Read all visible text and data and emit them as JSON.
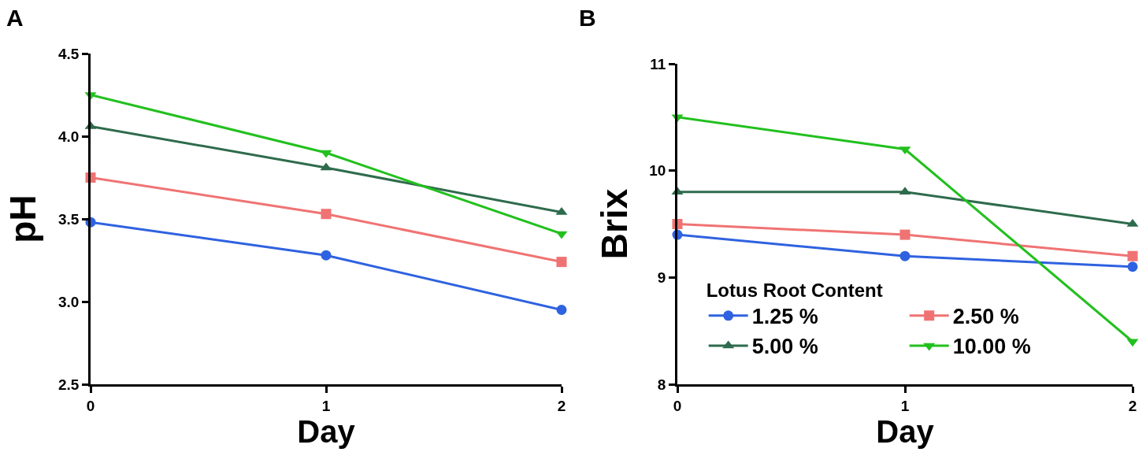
{
  "chart_data": [
    {
      "type": "line",
      "title": "A",
      "xlabel": "Day",
      "ylabel": "pH",
      "x": [
        0,
        1,
        2
      ],
      "xlim": [
        0,
        2
      ],
      "xticks": [
        0,
        1,
        2
      ],
      "ylim": [
        2.5,
        4.5
      ],
      "yticks": [
        {
          "value": 2.5,
          "label": "2.5"
        },
        {
          "value": 3.0,
          "label": "3.0"
        },
        {
          "value": 3.5,
          "label": "3.5"
        },
        {
          "value": 4.0,
          "label": "4.0"
        },
        {
          "value": 4.5,
          "label": "4.5"
        }
      ],
      "grid": false,
      "legend": false,
      "series": [
        {
          "color": "#2f62e0",
          "marker": "circle",
          "values": [
            3.48,
            3.28,
            2.95
          ]
        },
        {
          "color": "#f07373",
          "marker": "square",
          "values": [
            3.75,
            3.53,
            3.24
          ]
        },
        {
          "color": "#2e6b4c",
          "marker": "triangle",
          "values": [
            4.06,
            3.81,
            3.54
          ]
        },
        {
          "color": "#22c01e",
          "marker": "triangle-down",
          "values": [
            4.25,
            3.9,
            3.41
          ]
        }
      ]
    },
    {
      "type": "line",
      "title": "B",
      "xlabel": "Day",
      "ylabel": "Brix",
      "legend_title": "Lotus Root Content",
      "x": [
        0,
        1,
        2
      ],
      "xlim": [
        0,
        2
      ],
      "xticks": [
        0,
        1,
        2
      ],
      "ylim": [
        8,
        11
      ],
      "yticks": [
        8,
        9,
        10,
        11
      ],
      "grid": false,
      "legend": "bottom",
      "series": [
        {
          "name": "1.25 %",
          "color": "#2f62e0",
          "marker": "circle",
          "values": [
            9.4,
            9.2,
            9.1
          ]
        },
        {
          "name": "2.50 %",
          "color": "#f07373",
          "marker": "square",
          "values": [
            9.5,
            9.4,
            9.2
          ]
        },
        {
          "name": "5.00 %",
          "color": "#2e6b4c",
          "marker": "triangle",
          "values": [
            9.8,
            9.8,
            9.5
          ]
        },
        {
          "name": "10.00 %",
          "color": "#22c01e",
          "marker": "triangle-down",
          "values": [
            10.5,
            10.2,
            8.4
          ]
        }
      ]
    }
  ]
}
